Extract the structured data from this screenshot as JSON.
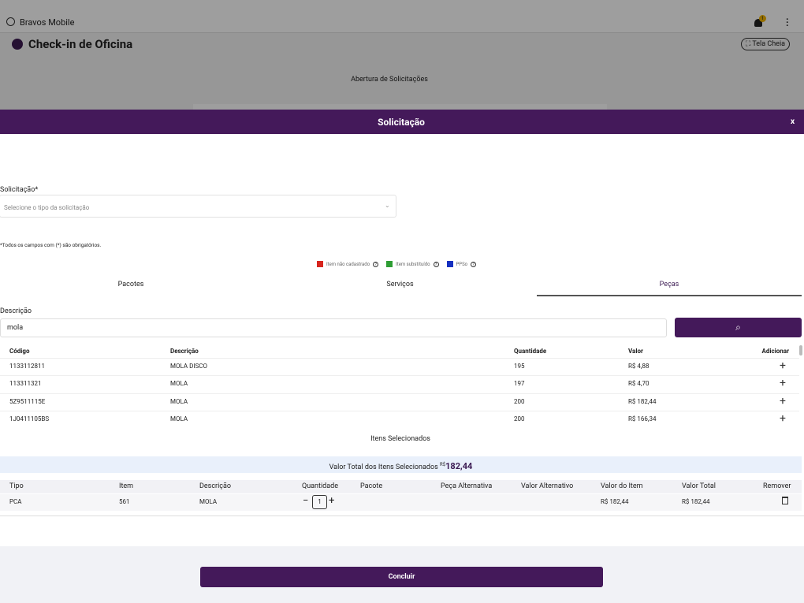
{
  "app": {
    "name": "Bravos Mobile",
    "badge": "1",
    "title": "Check-in de Oficina",
    "fullscreen": "Tela Cheia",
    "section": "Abertura de Solicitações"
  },
  "modal": {
    "title": "Solicitação",
    "close": "x",
    "field": {
      "label": "Solicitação*",
      "placeholder": "Selecione o tipo da solicitação"
    },
    "note": "*Todos os campos com (*) são obrigatórios.",
    "legend": [
      {
        "label": "Item não cadastrado",
        "color": "#d7261e"
      },
      {
        "label": "Item substituído",
        "color": "#2e9d34"
      },
      {
        "label": "PPSo",
        "color": "#1530c0"
      }
    ],
    "tabs": [
      "Pacotes",
      "Serviços",
      "Peças"
    ],
    "active_tab": 2,
    "search": {
      "label": "Descrição",
      "value": "mola"
    },
    "results": {
      "headers": [
        "Código",
        "Descrição",
        "Quantidade",
        "Valor",
        "Adicionar"
      ],
      "rows": [
        [
          "1133112811",
          "MOLA DISCO",
          "195",
          "R$ 4,88"
        ],
        [
          "113311321",
          "MOLA",
          "197",
          "R$ 4,70"
        ],
        [
          "5Z9511115E",
          "MOLA",
          "200",
          "R$ 182,44"
        ],
        [
          "1J0411105BS",
          "MOLA",
          "200",
          "R$ 166,34"
        ]
      ]
    },
    "selected_title": "Itens Selecionados",
    "total": {
      "label": "Valor Total dos Itens Selecionados",
      "currency": "R$",
      "value": "182,44"
    },
    "selected": {
      "headers": [
        "Tipo",
        "Item",
        "Descrição",
        "Quantidade",
        "Pacote",
        "Peça Alternativa",
        "Valor Alternativo",
        "Valor do Item",
        "Valor Total",
        "Remover"
      ],
      "rows": [
        {
          "tipo": "PCA",
          "item": "561",
          "descricao": "MOLA",
          "quantidade": "1",
          "valor_item": "R$ 182,44",
          "valor_total": "R$ 182,44"
        }
      ]
    },
    "submit": "Concluir"
  }
}
